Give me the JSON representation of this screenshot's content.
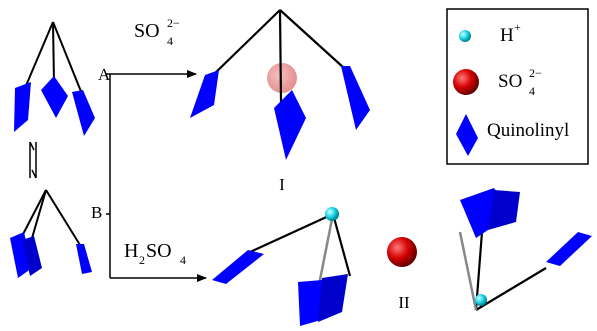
{
  "labels": {
    "a": "A",
    "b": "B",
    "i": "I",
    "ii": "II",
    "so4_arrow": {
      "base": "SO",
      "sup": "2−",
      "sub": "4"
    },
    "h2so4_arrow": {
      "h": "H",
      "h_sub": "2",
      "so": "SO",
      "so_sub": "4"
    }
  },
  "legend": {
    "h_plus": {
      "base": "H",
      "sup": "+",
      "color": "#19d6e6"
    },
    "sulfate": {
      "base": "SO",
      "sup": "2−",
      "sub": "4",
      "color": "#d40000"
    },
    "quinolinyl": {
      "label": "Quinolinyl",
      "color": "#0000ff"
    }
  },
  "colors": {
    "quinolinyl": "#0000ff",
    "quinolinyl_dark": "#0000b0",
    "bond": "#000000",
    "hbond": "#8a8a8a",
    "proton": "#19d6e6",
    "sulfate": "#d40000",
    "sulfate_translucent": "#e88a8a"
  }
}
